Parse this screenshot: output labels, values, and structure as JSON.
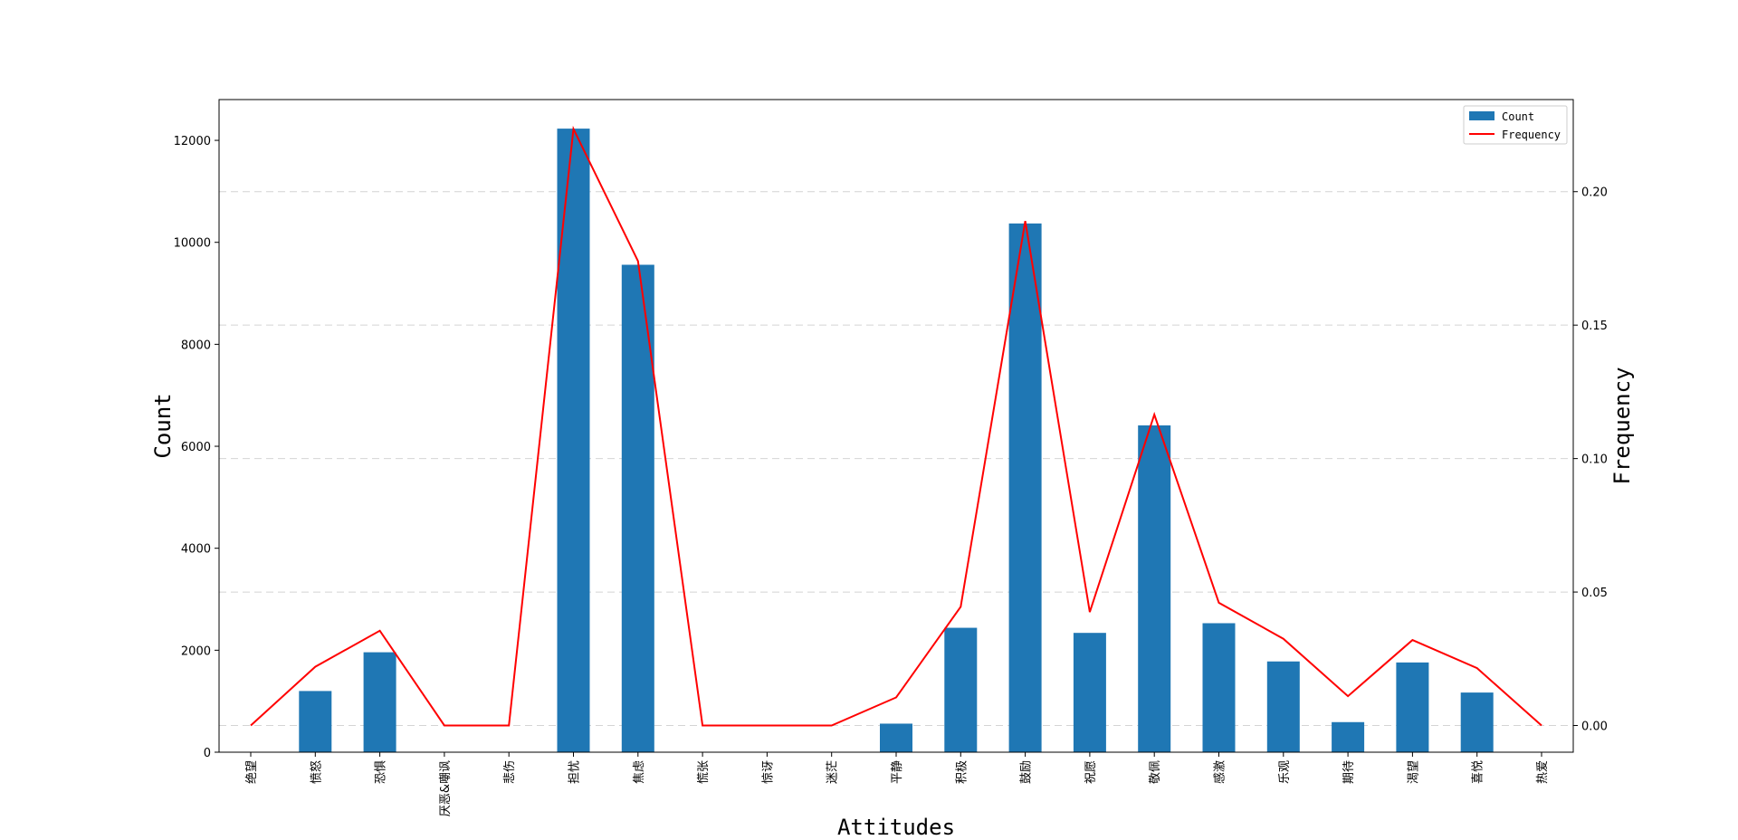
{
  "chart_data": {
    "type": "bar",
    "categories": [
      "绝望",
      "愤怒",
      "恐惧",
      "厌恶&嘲讽",
      "悲伤",
      "担忧",
      "焦虑",
      "慌张",
      "惊讶",
      "迷茫",
      "平静",
      "积极",
      "鼓励",
      "祝愿",
      "敬佩",
      "感激",
      "乐观",
      "期待",
      "渴望",
      "喜悦",
      "热爱"
    ],
    "series": [
      {
        "name": "Count",
        "type": "bar",
        "axis": "left",
        "color": "#1f77b4",
        "values": [
          0,
          1200,
          1960,
          0,
          0,
          12230,
          9560,
          0,
          0,
          0,
          560,
          2440,
          10370,
          2340,
          6410,
          2530,
          1780,
          590,
          1760,
          1170,
          0
        ]
      },
      {
        "name": "Frequency",
        "type": "line",
        "axis": "right",
        "color": "#ff0000",
        "values": [
          0.0,
          0.022,
          0.0355,
          0.0,
          0.0,
          0.2235,
          0.174,
          0.0,
          0.0,
          0.0,
          0.0105,
          0.0445,
          0.189,
          0.0425,
          0.1165,
          0.046,
          0.0325,
          0.011,
          0.032,
          0.0215,
          0.0
        ]
      }
    ],
    "xlabel": "Attitudes",
    "ylabel": "Count",
    "y2label": "Frequency",
    "ylim": [
      0,
      12800
    ],
    "y2lim": [
      -0.01,
      0.2345
    ],
    "yticks": [
      "0",
      "2000",
      "4000",
      "6000",
      "8000",
      "10000",
      "12000"
    ],
    "y2ticks": [
      "0.00",
      "0.05",
      "0.10",
      "0.15",
      "0.20"
    ],
    "grid": "dashed horizontal on right axis",
    "legend_position": "top-right",
    "legend": [
      "Count",
      "Frequency"
    ]
  }
}
